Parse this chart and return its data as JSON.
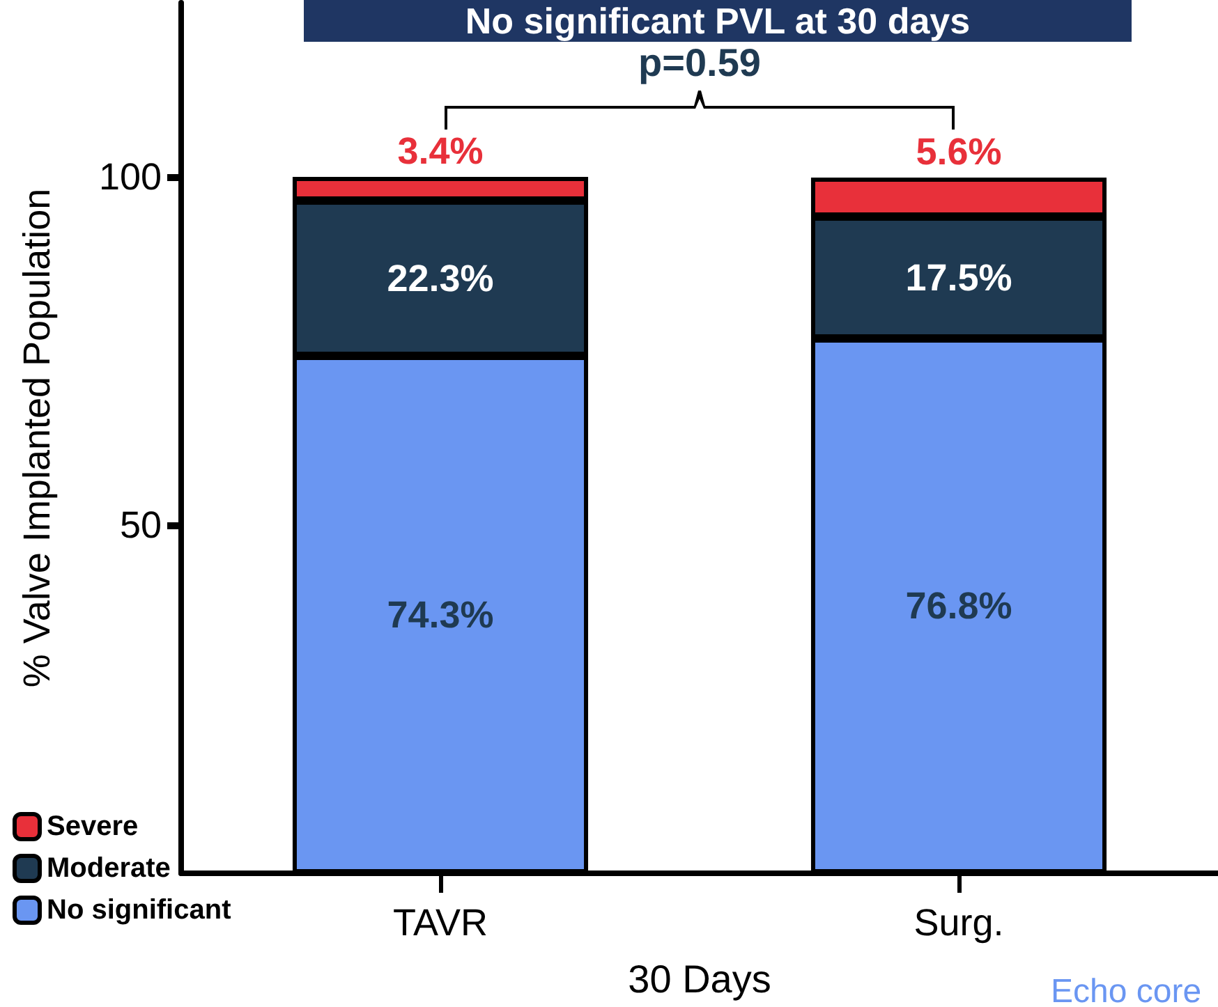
{
  "chart_data": {
    "type": "bar",
    "title": "No significant PVL at 30 days",
    "xlabel": "30 Days",
    "ylabel": "% Valve Implanted Population",
    "categories": [
      "TAVR",
      "Surg."
    ],
    "stacked": true,
    "ylim": [
      0,
      125
    ],
    "yticks": [
      50,
      100
    ],
    "grid": false,
    "legend": "bottom left",
    "series": [
      {
        "name": "No significant",
        "color": "#6a96f2",
        "values": [
          74.3,
          76.8
        ],
        "value_labels": [
          "74.3%",
          "76.8%"
        ]
      },
      {
        "name": "Moderate",
        "color": "#1f3a52",
        "values": [
          22.3,
          17.5
        ],
        "value_labels": [
          "22.3%",
          "17.5%"
        ]
      },
      {
        "name": "Severe",
        "color": "#e8303a",
        "values": [
          3.4,
          5.6
        ],
        "value_labels": [
          "3.4%",
          "5.6%"
        ]
      }
    ],
    "annotations": [
      "p=0.59",
      "Echo core"
    ]
  }
}
